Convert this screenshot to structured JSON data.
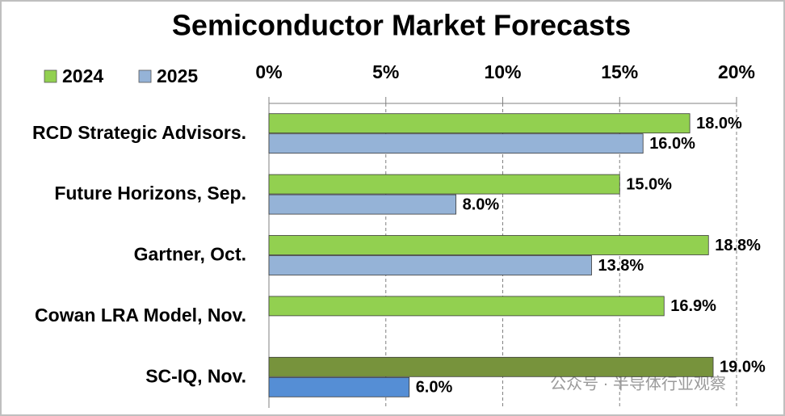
{
  "chart_data": {
    "type": "hbar",
    "title": "Semiconductor Market Forecasts",
    "categories": [
      "RCD Strategic Advisors.",
      "Future Horizons, Sep.",
      "Gartner, Oct.",
      "Cowan LRA Model, Nov.",
      "SC-IQ, Nov."
    ],
    "series": [
      {
        "name": "2024",
        "color": "#92d050",
        "point_colors": [
          "#92d050",
          "#92d050",
          "#92d050",
          "#92d050",
          "#77933c"
        ],
        "values": [
          18.0,
          15.0,
          18.8,
          16.9,
          19.0
        ],
        "value_labels": [
          "18.0%",
          "15.0%",
          "18.8%",
          "16.9%",
          "19.0%"
        ]
      },
      {
        "name": "2025",
        "color": "#95b3d7",
        "point_colors": [
          "#95b3d7",
          "#95b3d7",
          "#95b3d7",
          "#95b3d7",
          "#558ed5"
        ],
        "values": [
          16.0,
          8.0,
          13.8,
          null,
          6.0
        ],
        "value_labels": [
          "16.0%",
          "8.0%",
          "13.8%",
          null,
          "6.0%"
        ]
      }
    ],
    "xlim": [
      0,
      20
    ],
    "xticks": [
      {
        "value": 0,
        "label": "0%"
      },
      {
        "value": 5,
        "label": "5%"
      },
      {
        "value": 10,
        "label": "10%"
      },
      {
        "value": 15,
        "label": "15%"
      },
      {
        "value": 20,
        "label": "20%"
      }
    ],
    "grid": true,
    "legend": "top-left",
    "watermark": "公众号 · 半导体行业观察"
  }
}
